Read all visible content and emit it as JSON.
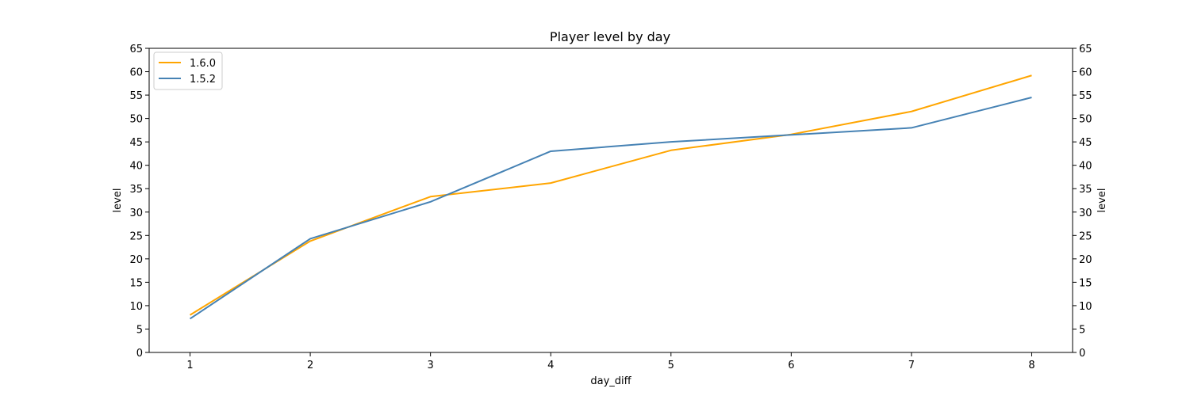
{
  "chart_data": {
    "type": "line",
    "title": "Player level by day",
    "xlabel": "day_diff",
    "ylabel": "level",
    "ylabel_right": "level",
    "x": [
      1,
      2,
      3,
      4,
      5,
      6,
      7,
      8
    ],
    "xlim": [
      0.66,
      8.34
    ],
    "ylim": [
      0,
      65
    ],
    "xticks": [
      1,
      2,
      3,
      4,
      5,
      6,
      7,
      8
    ],
    "yticks": [
      0,
      5,
      10,
      15,
      20,
      25,
      30,
      35,
      40,
      45,
      50,
      55,
      60,
      65
    ],
    "grid": false,
    "legend_position": "top-left",
    "series": [
      {
        "name": "1.6.0",
        "color": "#ffa500",
        "values": [
          8.0,
          23.8,
          33.3,
          36.2,
          43.2,
          46.6,
          51.5,
          59.2
        ]
      },
      {
        "name": "1.5.2",
        "color": "#4682b4",
        "values": [
          7.2,
          24.3,
          32.2,
          43.0,
          45.0,
          46.5,
          48.0,
          54.5
        ]
      }
    ]
  }
}
